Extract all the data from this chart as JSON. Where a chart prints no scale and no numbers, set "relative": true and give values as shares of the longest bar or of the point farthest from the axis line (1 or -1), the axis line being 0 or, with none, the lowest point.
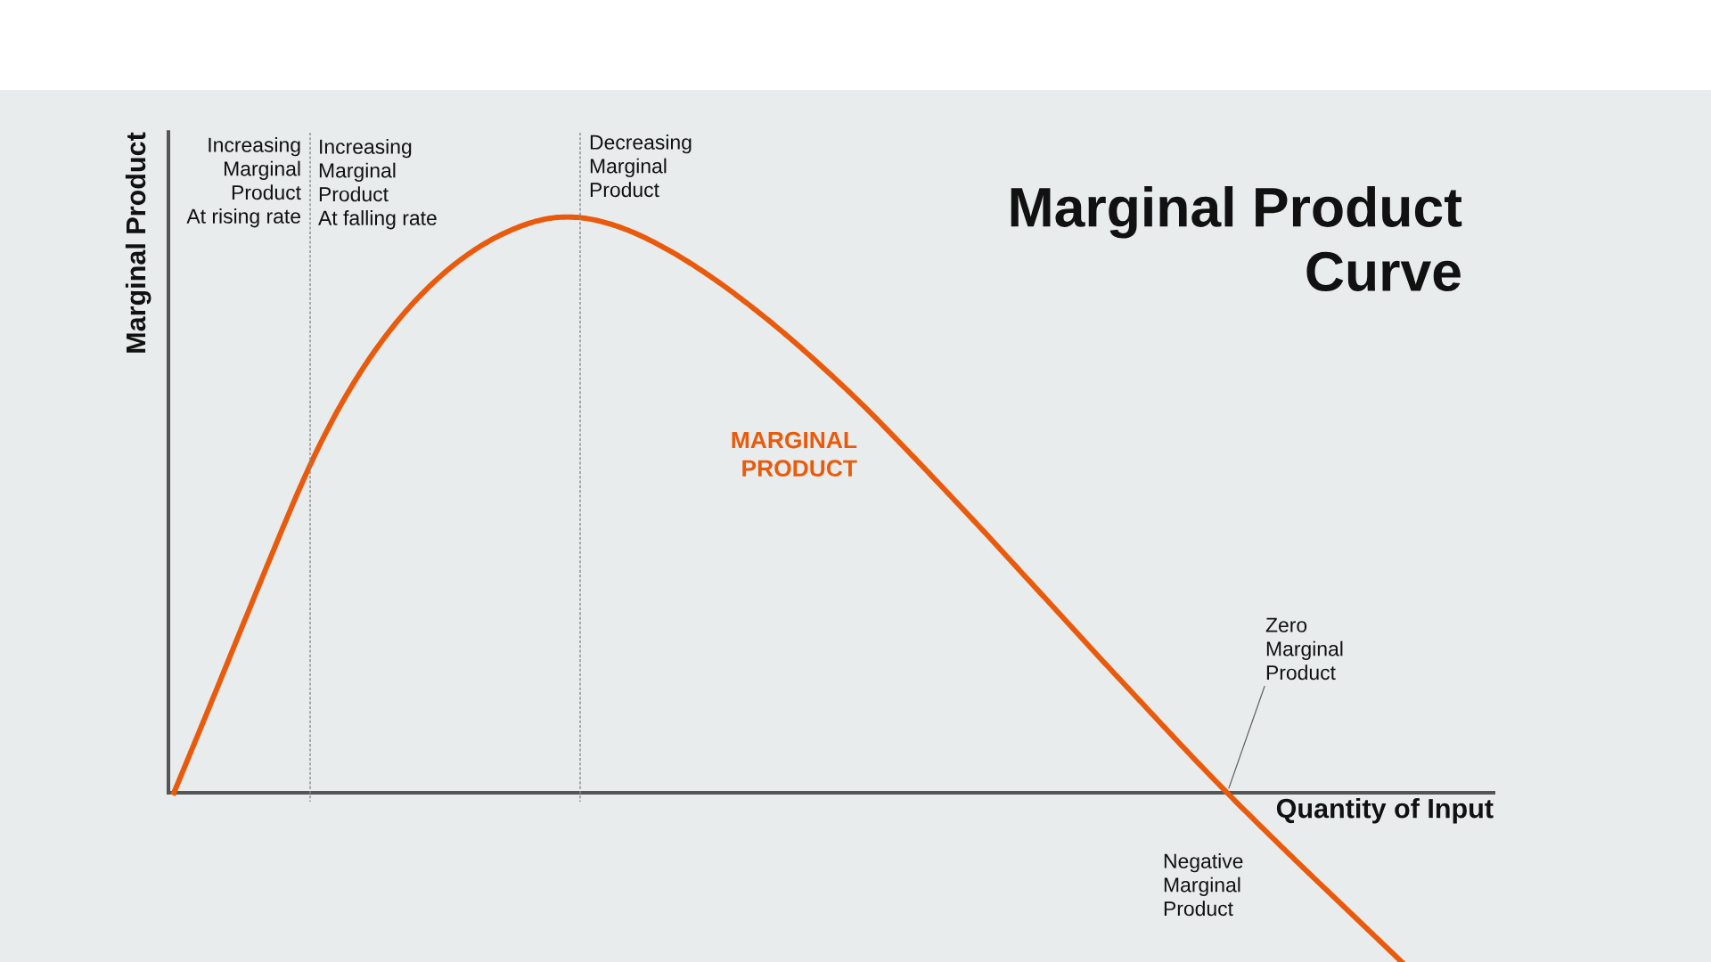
{
  "chart_data": {
    "type": "line",
    "title": "Marginal Product\nCurve",
    "xlabel": "Quantity of Input",
    "ylabel": "Marginal Product",
    "relative": true,
    "line_style": "solid",
    "categories": [
      null,
      null,
      null,
      null,
      null,
      null,
      null,
      null,
      null,
      null,
      null,
      null,
      null,
      null,
      null,
      null,
      null,
      null,
      null,
      null,
      null,
      null,
      null,
      null,
      null,
      null,
      null,
      null,
      null,
      null,
      null,
      null,
      null,
      null,
      null,
      null,
      null
    ],
    "series": [
      {
        "name": "MARGINAL\nPRODUCT",
        "color": "#e95a0c",
        "values": [
          0,
          0.144,
          0.29,
          0.435,
          0.573,
          0.688,
          0.78,
          0.853,
          0.91,
          0.953,
          0.983,
          1,
          1,
          0.985,
          0.959,
          0.925,
          0.885,
          0.84,
          0.791,
          0.738,
          0.682,
          0.622,
          0.56,
          0.497,
          0.433,
          0.368,
          0.303,
          0.238,
          0.174,
          0.11,
          0.047,
          -0.014,
          -0.073,
          -0.131,
          -0.188,
          -0.245,
          -0.302
        ]
      }
    ],
    "annotations": [
      "Increasing\nMarginal\nProduct\nAt rising rate",
      "Increasing\nMarginal\nProduct\nAt falling rate",
      "Decreasing\nMarginal\nProduct",
      "Zero\nMarginal\nProduct",
      "Negative\nMarginal\nProduct"
    ]
  }
}
